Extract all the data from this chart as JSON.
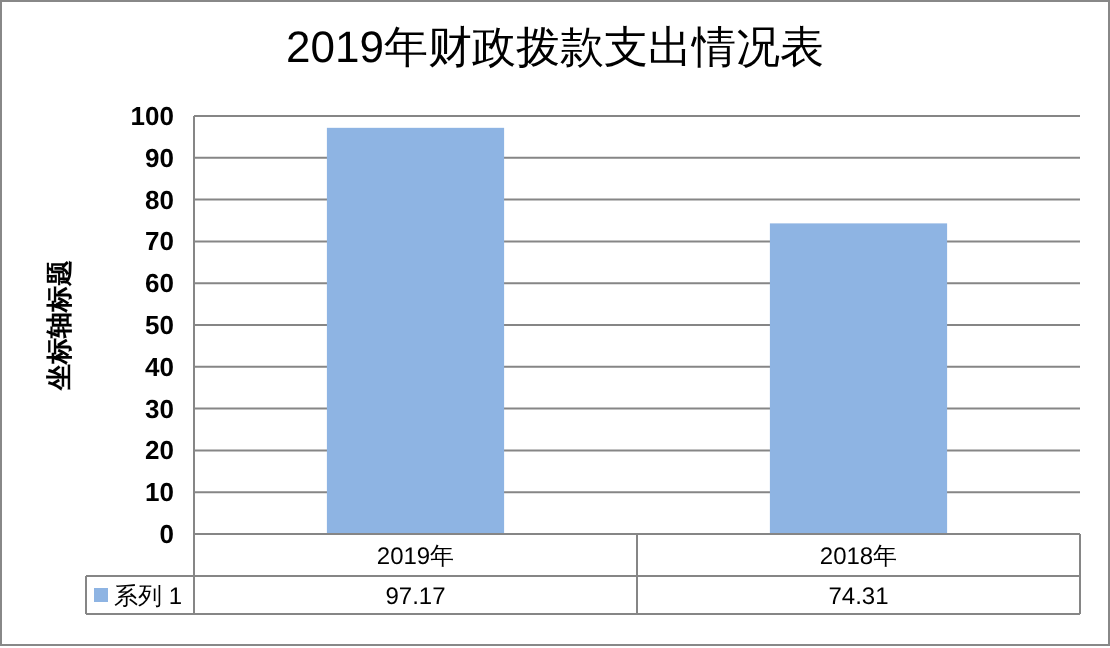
{
  "chart_data": {
    "type": "bar",
    "title": "2019年财政拨款支出情况表",
    "ylabel": "坐标轴标题",
    "categories": [
      "2019年",
      "2018年"
    ],
    "series": [
      {
        "name": "系列 1",
        "color": "#8eb4e3",
        "values": [
          97.17,
          74.31
        ]
      }
    ],
    "ylim": [
      0,
      100
    ],
    "yticks": [
      0,
      10,
      20,
      30,
      40,
      50,
      60,
      70,
      80,
      90,
      100
    ],
    "grid": "y",
    "legend": "bottom",
    "data_labels": true
  }
}
